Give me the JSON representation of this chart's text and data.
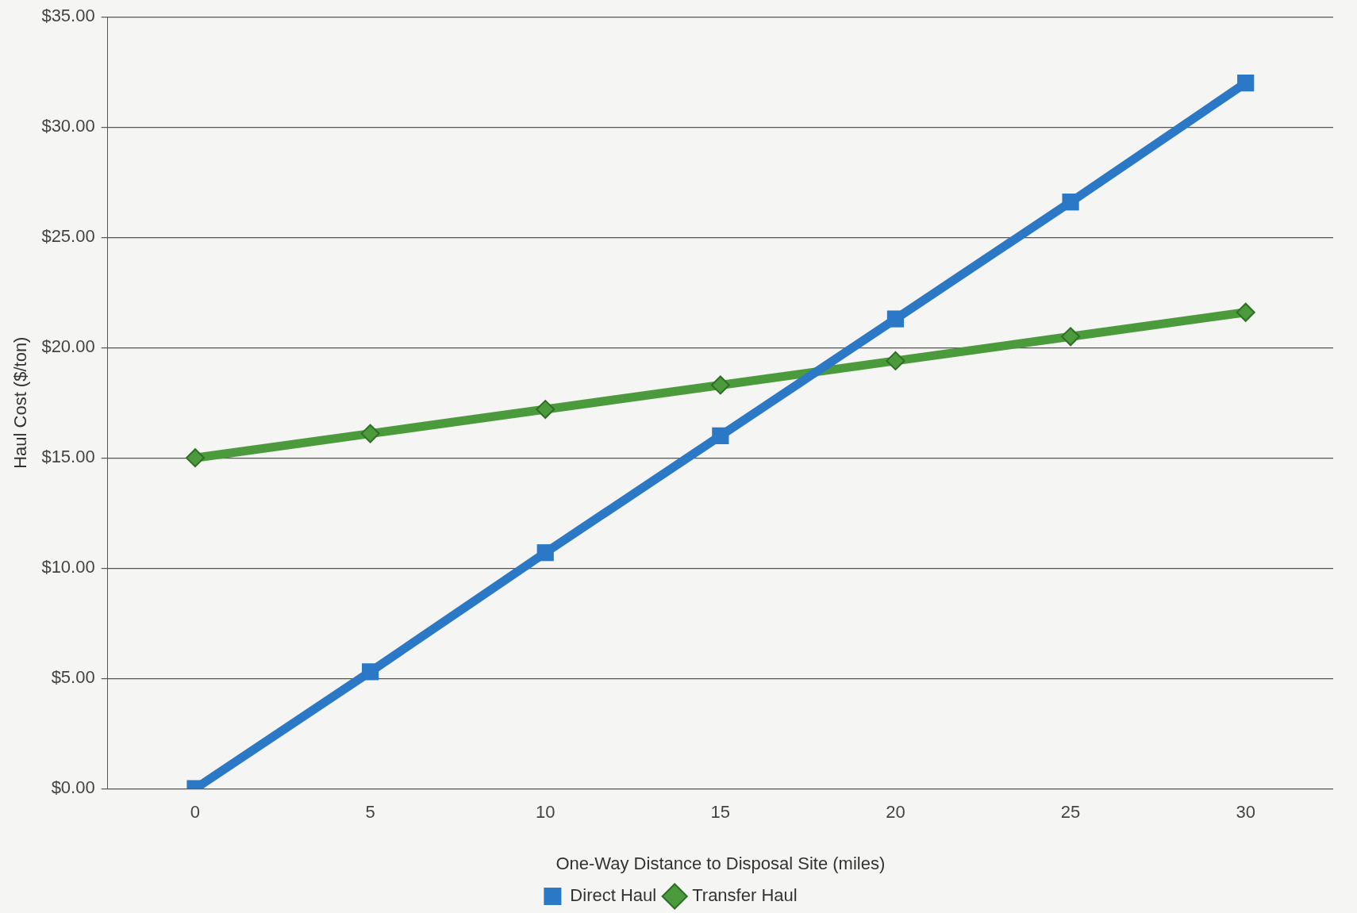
{
  "chart_data": {
    "type": "line",
    "xlabel": "One-Way Distance to Disposal Site (miles)",
    "ylabel": "Haul Cost ($/ton)",
    "categories": [
      "0",
      "5",
      "10",
      "15",
      "20",
      "25",
      "30"
    ],
    "series": [
      {
        "name": "Direct Haul",
        "color": "#2b78c6",
        "marker": "square",
        "values": [
          0.0,
          5.3,
          10.7,
          16.0,
          21.3,
          26.6,
          32.0
        ]
      },
      {
        "name": "Transfer Haul",
        "color": "#4b9b3c",
        "marker": "diamond",
        "values": [
          15.0,
          16.1,
          17.2,
          18.3,
          19.4,
          20.5,
          21.6
        ]
      }
    ],
    "ylim": [
      0,
      35
    ],
    "yticks": [
      {
        "value": 0,
        "label": "$0.00"
      },
      {
        "value": 5,
        "label": "$5.00"
      },
      {
        "value": 10,
        "label": "$10.00"
      },
      {
        "value": 15,
        "label": "$15.00"
      },
      {
        "value": 20,
        "label": "$20.00"
      },
      {
        "value": 25,
        "label": "$25.00"
      },
      {
        "value": 30,
        "label": "$30.00"
      },
      {
        "value": 35,
        "label": "$35.00"
      }
    ],
    "grid": "y",
    "legend": "bottom",
    "line_style": "solid"
  }
}
